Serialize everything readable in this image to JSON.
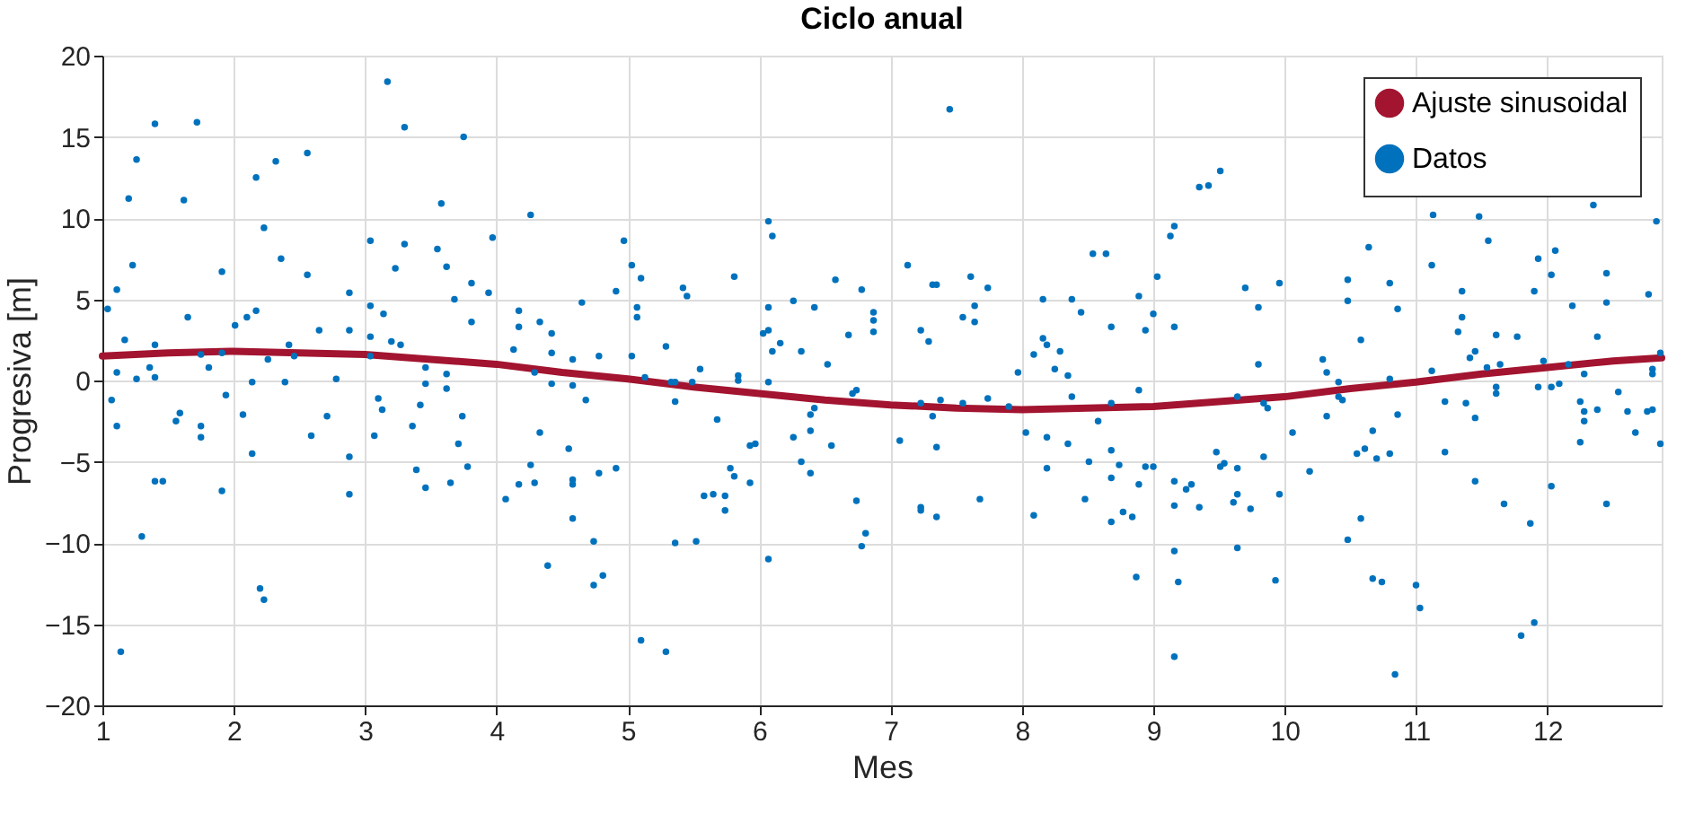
{
  "chart_data": {
    "type": "scatter",
    "title": "Ciclo anual",
    "xlabel": "Mes",
    "ylabel": "Progresiva [m]",
    "xlim": [
      1,
      12.87
    ],
    "xticks": [
      1,
      2,
      3,
      4,
      5,
      6,
      7,
      8,
      9,
      10,
      11,
      12
    ],
    "ylim": [
      -20,
      20
    ],
    "yticks": [
      -20,
      -15,
      -10,
      -5,
      0,
      5,
      10,
      15,
      20
    ],
    "grid": true,
    "legend": "top right",
    "series": [
      {
        "name": "Ajuste sinusoidal",
        "type": "line",
        "line_style": "solid",
        "color": "#a2142f",
        "x": [
          1,
          1.5,
          2,
          2.5,
          3,
          3.5,
          4,
          4.5,
          5,
          5.5,
          6,
          6.5,
          7,
          7.5,
          8,
          8.5,
          9,
          9.5,
          10,
          10.5,
          11,
          11.5,
          12,
          12.5,
          12.87
        ],
        "values": [
          1.5,
          1.7,
          1.8,
          1.7,
          1.6,
          1.3,
          1.0,
          0.5,
          0.1,
          -0.4,
          -0.8,
          -1.2,
          -1.5,
          -1.7,
          -1.8,
          -1.7,
          -1.6,
          -1.3,
          -1.0,
          -0.5,
          -0.1,
          0.4,
          0.8,
          1.2,
          1.4
        ]
      },
      {
        "name": "Datos",
        "marker": "circle",
        "color": "#0072bd",
        "x": [
          1.4,
          1.72,
          1.26,
          2.56,
          2.32,
          2.17,
          1.2,
          1.62,
          2.23,
          1.23,
          2.36,
          1.91,
          2.56,
          1.11,
          2.88,
          1.04,
          1.65,
          2.17,
          2.1,
          2.01,
          2.65,
          2.88,
          1.17,
          1.4,
          2.42,
          1.75,
          1.91,
          2.26,
          2.46,
          1.11,
          1.36,
          1.81,
          1.26,
          1.4,
          2.14,
          2.39,
          2.78,
          1.07,
          1.94,
          1.11,
          1.56,
          1.59,
          1.75,
          1.75,
          2.07,
          2.71,
          2.59,
          2.14,
          2.88,
          1.4,
          1.46,
          1.91,
          2.88,
          1.3,
          2.2,
          2.23,
          1.14,
          3.17,
          3.3,
          3.75,
          3.58,
          4.26,
          3.04,
          3.3,
          3.55,
          3.97,
          3.23,
          3.62,
          3.81,
          3.94,
          4.91,
          3.04,
          3.14,
          3.68,
          3.81,
          4.17,
          4.17,
          4.33,
          4.42,
          4.65,
          3.04,
          3.2,
          3.27,
          4.13,
          4.42,
          4.58,
          4.78,
          3.04,
          3.46,
          3.62,
          4.29,
          3.46,
          3.62,
          4.42,
          4.58,
          3.1,
          3.13,
          3.42,
          4.68,
          3.74,
          3.36,
          3.07,
          4.33,
          3.71,
          4.55,
          3.39,
          3.46,
          3.65,
          3.78,
          4.07,
          4.17,
          4.26,
          4.29,
          4.58,
          4.58,
          4.78,
          4.91,
          4.58,
          4.74,
          4.39,
          4.74,
          4.81,
          4.97,
          5.03,
          5.1,
          5.07,
          5.07,
          5.03,
          5.13,
          5.29,
          5.42,
          5.45,
          5.81,
          5.55,
          5.33,
          5.36,
          5.49,
          5.84,
          5.84,
          5.36,
          5.68,
          5.78,
          5.81,
          5.93,
          5.97,
          5.93,
          5.58,
          5.65,
          5.74,
          5.74,
          5.36,
          5.52,
          5.1,
          5.29,
          6.07,
          6.1,
          6.07,
          6.03,
          6.07,
          6.1,
          6.16,
          6.07,
          6.07,
          6.26,
          6.42,
          6.32,
          6.58,
          6.78,
          6.68,
          6.52,
          6.87,
          6.87,
          6.87,
          6.71,
          6.74,
          6.42,
          6.39,
          6.39,
          6.26,
          6.55,
          6.32,
          6.39,
          6.74,
          6.81,
          6.78,
          7.45,
          7.13,
          7.32,
          7.35,
          7.61,
          7.74,
          7.64,
          7.55,
          7.64,
          7.23,
          7.29,
          7.97,
          7.23,
          7.38,
          7.55,
          7.74,
          7.9,
          7.32,
          7.07,
          7.35,
          7.23,
          7.23,
          7.35,
          7.68,
          8.16,
          8.38,
          8.45,
          8.54,
          8.64,
          8.68,
          8.16,
          8.19,
          8.09,
          8.29,
          8.25,
          8.35,
          8.38,
          8.68,
          8.03,
          8.19,
          8.35,
          8.58,
          8.68,
          8.19,
          8.51,
          8.74,
          8.68,
          8.48,
          8.09,
          8.68,
          8.77,
          8.84,
          8.87,
          8.89,
          8.89,
          8.89,
          9.51,
          9.35,
          9.42,
          9.16,
          9.13,
          9.03,
          9.0,
          8.94,
          9.16,
          9.7,
          9.8,
          9.96,
          9.8,
          9.64,
          9.84,
          9.87,
          10.06,
          9.48,
          9.51,
          9.54,
          9.64,
          9.84,
          8.94,
          9.0,
          9.16,
          9.25,
          9.29,
          9.16,
          9.35,
          9.61,
          9.64,
          9.74,
          9.96,
          9.16,
          9.64,
          9.19,
          9.93,
          9.16,
          10.19,
          10.64,
          10.48,
          10.48,
          10.8,
          10.86,
          10.58,
          10.29,
          10.32,
          10.41,
          10.41,
          10.44,
          10.32,
          10.8,
          10.86,
          10.67,
          10.61,
          10.55,
          10.7,
          10.8,
          10.58,
          10.48,
          10.67,
          10.74,
          10.84,
          11.13,
          11.48,
          11.55,
          12.35,
          12.83,
          11.12,
          11.93,
          12.06,
          12.03,
          11.9,
          11.35,
          12.45,
          12.45,
          12.19,
          12.77,
          11.35,
          11.32,
          11.61,
          11.77,
          12.38,
          11.41,
          11.45,
          11.54,
          11.64,
          11.97,
          12.16,
          11.12,
          12.86,
          12.8,
          12.8,
          12.28,
          11.61,
          11.61,
          11.93,
          12.03,
          12.09,
          11.22,
          11.38,
          11.45,
          12.25,
          12.28,
          12.28,
          12.38,
          12.54,
          12.61,
          12.67,
          12.76,
          12.8,
          12.86,
          12.25,
          11.22,
          11.45,
          11.67,
          11.87,
          12.03,
          12.45,
          11.0,
          11.03,
          11.8,
          11.9
        ],
        "values": [
          15.8,
          15.9,
          13.6,
          14.0,
          13.5,
          12.5,
          11.2,
          11.1,
          9.4,
          7.1,
          7.5,
          6.7,
          6.5,
          5.6,
          5.4,
          4.4,
          3.9,
          4.3,
          3.9,
          3.4,
          3.1,
          3.1,
          2.5,
          2.2,
          2.2,
          1.6,
          1.7,
          1.3,
          1.5,
          0.5,
          0.8,
          0.8,
          0.1,
          0.2,
          -0.1,
          -0.1,
          0.1,
          -1.2,
          -0.9,
          -2.8,
          -2.5,
          -2.0,
          -2.8,
          -3.5,
          -2.1,
          -2.2,
          -3.4,
          -4.5,
          -4.7,
          -6.2,
          -6.2,
          -6.8,
          -7.0,
          -9.6,
          -12.8,
          -13.5,
          -16.7,
          18.4,
          15.6,
          15.0,
          10.9,
          10.2,
          8.6,
          8.4,
          8.1,
          8.8,
          6.9,
          7.0,
          6.0,
          5.4,
          5.5,
          4.6,
          4.1,
          5.0,
          3.6,
          4.3,
          3.3,
          3.6,
          2.9,
          4.8,
          2.7,
          2.4,
          2.2,
          1.9,
          1.7,
          1.3,
          1.5,
          1.5,
          0.8,
          0.4,
          0.5,
          -0.2,
          -0.5,
          -0.2,
          -0.3,
          -1.1,
          -1.8,
          -1.5,
          -1.2,
          -2.2,
          -2.8,
          -3.4,
          -3.2,
          -3.9,
          -4.2,
          -5.5,
          -6.6,
          -6.3,
          -5.3,
          -7.3,
          -6.4,
          -5.2,
          -6.3,
          -6.1,
          -6.4,
          -5.7,
          -5.4,
          -8.5,
          -9.9,
          -11.4,
          -12.6,
          -12.0,
          8.6,
          7.1,
          6.3,
          4.5,
          3.9,
          1.5,
          0.2,
          2.1,
          5.7,
          5.2,
          6.4,
          0.7,
          -0.1,
          -0.1,
          -0.1,
          0.3,
          0.0,
          -1.3,
          -2.4,
          -5.4,
          -5.9,
          -4.0,
          -3.9,
          -6.3,
          -7.1,
          -7.0,
          -7.1,
          -8.0,
          -10.0,
          -9.9,
          -16.0,
          -16.7,
          9.8,
          8.9,
          4.5,
          2.9,
          3.1,
          1.8,
          2.3,
          -0.1,
          -11.0,
          4.9,
          4.5,
          1.8,
          6.2,
          5.6,
          2.8,
          1.0,
          4.2,
          3.7,
          3.0,
          -0.8,
          -0.6,
          -1.7,
          -2.1,
          -3.1,
          -3.5,
          -4.0,
          -5.0,
          -5.7,
          -7.4,
          -9.4,
          -10.2,
          16.7,
          7.1,
          5.9,
          5.9,
          6.4,
          5.7,
          4.6,
          3.9,
          3.6,
          3.1,
          2.4,
          0.5,
          -1.4,
          -1.2,
          -1.4,
          -1.1,
          -1.6,
          -2.2,
          -3.7,
          -4.1,
          -7.8,
          -8.0,
          -8.4,
          -7.3,
          5.0,
          5.0,
          4.2,
          7.8,
          7.8,
          3.3,
          2.6,
          2.2,
          1.6,
          1.8,
          0.7,
          0.3,
          -1.0,
          -1.4,
          -3.2,
          -3.5,
          -3.9,
          -2.5,
          -4.3,
          -5.4,
          -5.0,
          -5.2,
          -6.0,
          -7.3,
          -8.3,
          -8.7,
          -8.1,
          -8.4,
          -12.1,
          5.2,
          -0.6,
          -6.4,
          12.9,
          11.9,
          12.0,
          9.5,
          8.9,
          6.4,
          4.1,
          3.1,
          3.3,
          5.7,
          4.5,
          6.0,
          1.0,
          -1.0,
          -1.4,
          -1.7,
          -3.2,
          -4.4,
          -5.3,
          -5.1,
          -5.4,
          -4.7,
          -5.3,
          -5.3,
          -6.2,
          -6.7,
          -6.4,
          -7.7,
          -7.8,
          -7.5,
          -7.0,
          -7.9,
          -7.0,
          -10.5,
          -10.3,
          -12.4,
          -12.3,
          -17.0,
          -5.6,
          8.2,
          6.2,
          4.9,
          6.0,
          4.4,
          2.5,
          1.3,
          0.5,
          -0.1,
          -1.0,
          -1.2,
          -2.2,
          0.1,
          -2.1,
          -3.1,
          -4.2,
          -4.5,
          -4.8,
          -4.5,
          -8.5,
          -9.8,
          -12.2,
          -12.4,
          -18.1,
          10.2,
          10.1,
          8.6,
          10.8,
          9.8,
          7.1,
          7.5,
          8.0,
          6.5,
          5.5,
          5.5,
          6.6,
          4.8,
          4.6,
          5.3,
          3.9,
          3.0,
          2.8,
          2.7,
          2.7,
          1.4,
          1.8,
          0.8,
          1.0,
          1.2,
          1.0,
          0.6,
          1.7,
          0.7,
          0.4,
          0.4,
          -0.4,
          -0.8,
          -0.4,
          -0.4,
          -0.2,
          -1.3,
          -1.4,
          -2.3,
          -1.3,
          -1.9,
          -2.5,
          -1.8,
          -0.7,
          -1.9,
          -3.2,
          -1.9,
          -1.8,
          -3.9,
          -3.8,
          -4.4,
          -6.2,
          -7.6,
          -8.8,
          -6.5,
          -7.6,
          -12.6,
          -14.0,
          -15.7,
          -14.9
        ]
      }
    ]
  }
}
